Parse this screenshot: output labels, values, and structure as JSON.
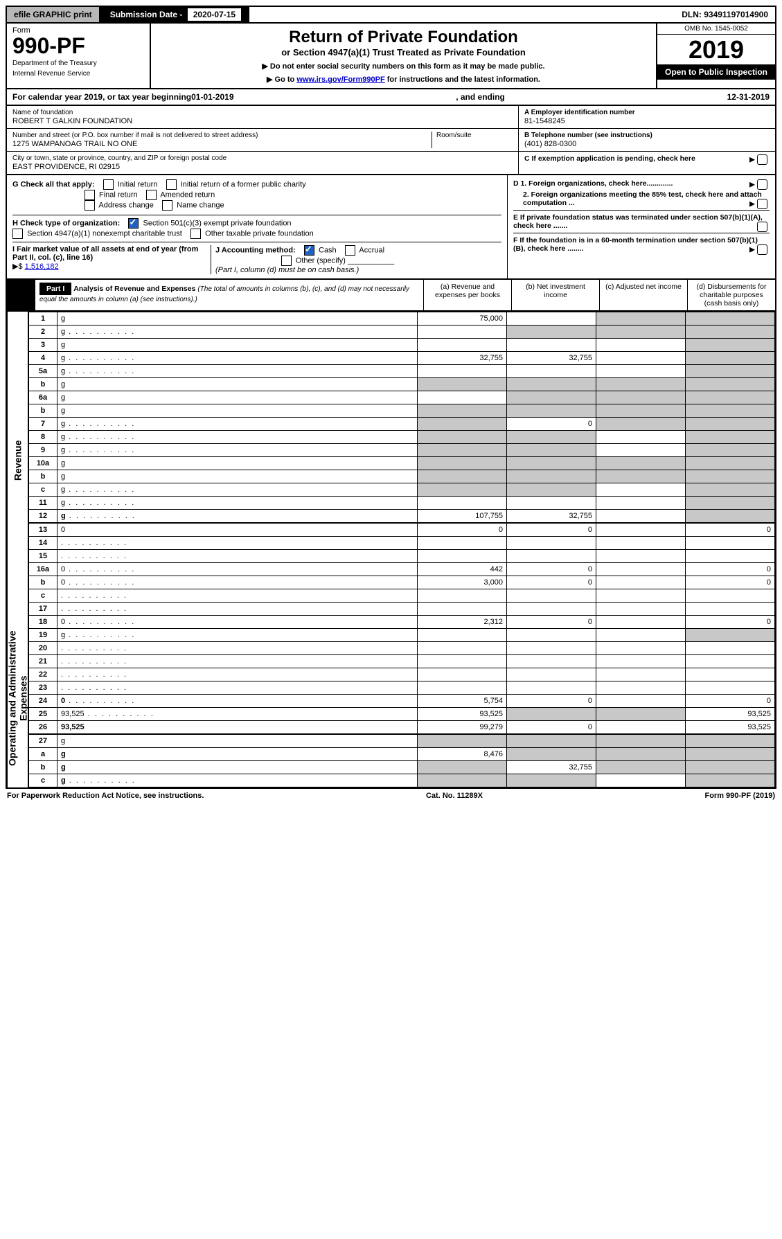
{
  "top": {
    "efile": "efile GRAPHIC print",
    "submission_label": "Submission Date - ",
    "submission_date": "2020-07-15",
    "dln_label": "DLN: ",
    "dln": "93491197014900"
  },
  "header": {
    "form_word": "Form",
    "form_number": "990-PF",
    "dept1": "Department of the Treasury",
    "dept2": "Internal Revenue Service",
    "title": "Return of Private Foundation",
    "subtitle": "or Section 4947(a)(1) Trust Treated as Private Foundation",
    "note1": "▶ Do not enter social security numbers on this form as it may be made public.",
    "note2_pre": "▶ Go to ",
    "note2_link": "www.irs.gov/Form990PF",
    "note2_post": " for instructions and the latest information.",
    "omb": "OMB No. 1545-0052",
    "year": "2019",
    "open": "Open to Public Inspection"
  },
  "calendar": {
    "pre": "For calendar year 2019, or tax year beginning ",
    "begin": "01-01-2019",
    "mid": " , and ending ",
    "end": "12-31-2019"
  },
  "id": {
    "name_label": "Name of foundation",
    "name": "ROBERT T GALKIN FOUNDATION",
    "addr_label": "Number and street (or P.O. box number if mail is not delivered to street address)",
    "room_label": "Room/suite",
    "addr": "1275 WAMPANOAG TRAIL NO ONE",
    "city_label": "City or town, state or province, country, and ZIP or foreign postal code",
    "city": "EAST PROVIDENCE, RI  02915",
    "a_label": "A Employer identification number",
    "a_val": "81-1548245",
    "b_label": "B Telephone number (see instructions)",
    "b_val": "(401) 828-0300",
    "c_label": "C  If exemption application is pending, check here",
    "d1": "D 1. Foreign organizations, check here.............",
    "d2": "2. Foreign organizations meeting the 85% test, check here and attach computation ...",
    "e": "E  If private foundation status was terminated under section 507(b)(1)(A), check here .......",
    "f": "F  If the foundation is in a 60-month termination under section 507(b)(1)(B), check here ........"
  },
  "g": {
    "label": "G Check all that apply:",
    "opts": [
      "Initial return",
      "Initial return of a former public charity",
      "Final return",
      "Amended return",
      "Address change",
      "Name change"
    ]
  },
  "h": {
    "label": "H Check type of organization:",
    "opt1": "Section 501(c)(3) exempt private foundation",
    "opt2": "Section 4947(a)(1) nonexempt charitable trust",
    "opt3": "Other taxable private foundation"
  },
  "i": {
    "label": "I Fair market value of all assets at end of year (from Part II, col. (c), line 16)",
    "arrow": "▶$",
    "val": "1,516,182"
  },
  "j": {
    "label": "J Accounting method:",
    "cash": "Cash",
    "accrual": "Accrual",
    "other": "Other (specify)",
    "note": "(Part I, column (d) must be on cash basis.)"
  },
  "part1": {
    "label": "Part I",
    "title": "Analysis of Revenue and Expenses",
    "title_note": " (The total of amounts in columns (b), (c), and (d) may not necessarily equal the amounts in column (a) (see instructions).)",
    "col_a": "(a) Revenue and expenses per books",
    "col_b": "(b) Net investment income",
    "col_c": "(c) Adjusted net income",
    "col_d": "(d) Disbursements for charitable purposes (cash basis only)"
  },
  "vert": {
    "revenue": "Revenue",
    "expenses": "Operating and Administrative Expenses"
  },
  "lines": [
    {
      "n": "1",
      "d": "g",
      "a": "75,000",
      "b": "",
      "c": "g"
    },
    {
      "n": "2",
      "d": "g",
      "a": "",
      "b": "g",
      "c": "g",
      "dots": true
    },
    {
      "n": "3",
      "d": "g",
      "a": "",
      "b": "",
      "c": ""
    },
    {
      "n": "4",
      "d": "g",
      "a": "32,755",
      "b": "32,755",
      "c": "",
      "dots": true
    },
    {
      "n": "5a",
      "d": "g",
      "a": "",
      "b": "",
      "c": "",
      "dots": true
    },
    {
      "n": "b",
      "d": "g",
      "a": "g",
      "b": "g",
      "c": "g"
    },
    {
      "n": "6a",
      "d": "g",
      "a": "",
      "b": "g",
      "c": "g"
    },
    {
      "n": "b",
      "d": "g",
      "a": "g",
      "b": "g",
      "c": "g"
    },
    {
      "n": "7",
      "d": "g",
      "a": "g",
      "b": "0",
      "c": "g",
      "dots": true
    },
    {
      "n": "8",
      "d": "g",
      "a": "g",
      "b": "g",
      "c": "",
      "dots": true
    },
    {
      "n": "9",
      "d": "g",
      "a": "g",
      "b": "g",
      "c": "",
      "dots": true
    },
    {
      "n": "10a",
      "d": "g",
      "a": "g",
      "b": "g",
      "c": "g"
    },
    {
      "n": "b",
      "d": "g",
      "a": "g",
      "b": "g",
      "c": "g"
    },
    {
      "n": "c",
      "d": "g",
      "a": "g",
      "b": "g",
      "c": "",
      "dots": true
    },
    {
      "n": "11",
      "d": "g",
      "a": "",
      "b": "",
      "c": "",
      "dots": true
    },
    {
      "n": "12",
      "d": "g",
      "a": "107,755",
      "b": "32,755",
      "c": "",
      "bold": true,
      "dots": true
    }
  ],
  "exp_lines": [
    {
      "n": "13",
      "d": "0",
      "a": "0",
      "b": "0",
      "c": ""
    },
    {
      "n": "14",
      "d": "",
      "a": "",
      "b": "",
      "c": "",
      "dots": true
    },
    {
      "n": "15",
      "d": "",
      "a": "",
      "b": "",
      "c": "",
      "dots": true
    },
    {
      "n": "16a",
      "d": "0",
      "a": "442",
      "b": "0",
      "c": "",
      "dots": true
    },
    {
      "n": "b",
      "d": "0",
      "a": "3,000",
      "b": "0",
      "c": "",
      "dots": true
    },
    {
      "n": "c",
      "d": "",
      "a": "",
      "b": "",
      "c": "",
      "dots": true
    },
    {
      "n": "17",
      "d": "",
      "a": "",
      "b": "",
      "c": "",
      "dots": true
    },
    {
      "n": "18",
      "d": "0",
      "a": "2,312",
      "b": "0",
      "c": "",
      "dots": true
    },
    {
      "n": "19",
      "d": "g",
      "a": "",
      "b": "",
      "c": "",
      "dots": true
    },
    {
      "n": "20",
      "d": "",
      "a": "",
      "b": "",
      "c": "",
      "dots": true
    },
    {
      "n": "21",
      "d": "",
      "a": "",
      "b": "",
      "c": "",
      "dots": true
    },
    {
      "n": "22",
      "d": "",
      "a": "",
      "b": "",
      "c": "",
      "dots": true
    },
    {
      "n": "23",
      "d": "",
      "a": "",
      "b": "",
      "c": "",
      "dots": true
    },
    {
      "n": "24",
      "d": "0",
      "a": "5,754",
      "b": "0",
      "c": "",
      "bold": true,
      "dots": true
    },
    {
      "n": "25",
      "d": "93,525",
      "a": "93,525",
      "b": "g",
      "c": "g",
      "dots": true
    },
    {
      "n": "26",
      "d": "93,525",
      "a": "99,279",
      "b": "0",
      "c": "",
      "bold": true
    }
  ],
  "sub_lines": [
    {
      "n": "27",
      "d": "g",
      "a": "g",
      "b": "g",
      "c": "g"
    },
    {
      "n": "a",
      "d": "g",
      "a": "8,476",
      "b": "g",
      "c": "g",
      "bold": true
    },
    {
      "n": "b",
      "d": "g",
      "a": "g",
      "b": "32,755",
      "c": "g",
      "bold": true
    },
    {
      "n": "c",
      "d": "g",
      "a": "g",
      "b": "g",
      "c": "",
      "bold": true,
      "dots": true
    }
  ],
  "footer": {
    "left": "For Paperwork Reduction Act Notice, see instructions.",
    "mid": "Cat. No. 11289X",
    "right": "Form 990-PF (2019)"
  },
  "colors": {
    "grey": "#c8c8c8",
    "blue": "#2060c0",
    "link": "#0000cc"
  }
}
